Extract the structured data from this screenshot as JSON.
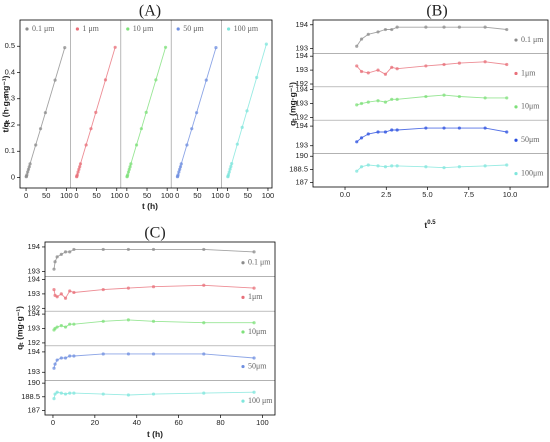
{
  "chart_data": [
    {
      "type": "line",
      "layout": "side-by-side",
      "title": "(A)",
      "x_label": "t (h)",
      "y_label": "t/qₜ (h·g·mg⁻¹)",
      "x": [
        0.5,
        1,
        2,
        4,
        6,
        8,
        10,
        24,
        36,
        48,
        72,
        96
      ],
      "xlim": [
        -15,
        110
      ],
      "xticks": [
        0,
        50,
        100
      ],
      "ylim": [
        -0.04,
        0.6
      ],
      "yticks": [
        0,
        0.1,
        0.2,
        0.3,
        0.4,
        0.5
      ],
      "series": [
        {
          "name": "0.1 μm",
          "color": "#8c8c8c",
          "values": [
            0.003,
            0.005,
            0.01,
            0.021,
            0.031,
            0.041,
            0.052,
            0.124,
            0.186,
            0.247,
            0.371,
            0.495
          ]
        },
        {
          "name": "1 μm",
          "color": "#e8707a",
          "values": [
            0.003,
            0.005,
            0.01,
            0.021,
            0.031,
            0.041,
            0.052,
            0.124,
            0.186,
            0.248,
            0.372,
            0.496
          ]
        },
        {
          "name": "10 μm",
          "color": "#7ee07a",
          "values": [
            0.003,
            0.005,
            0.01,
            0.021,
            0.031,
            0.041,
            0.052,
            0.124,
            0.186,
            0.248,
            0.372,
            0.496
          ]
        },
        {
          "name": "50 μm",
          "color": "#6f8fe0",
          "values": [
            0.003,
            0.005,
            0.01,
            0.021,
            0.031,
            0.041,
            0.052,
            0.124,
            0.186,
            0.247,
            0.371,
            0.495
          ]
        },
        {
          "name": "100 μm",
          "color": "#7fe6dc",
          "values": [
            0.003,
            0.005,
            0.011,
            0.021,
            0.032,
            0.042,
            0.053,
            0.127,
            0.191,
            0.254,
            0.381,
            0.508
          ]
        }
      ]
    },
    {
      "type": "line",
      "layout": "stacked",
      "title": "(B)",
      "x_label": "t",
      "x_label_sup": "0.5",
      "y_label": "qₜ (mg·g⁻¹)",
      "x": [
        0.71,
        1,
        1.41,
        2,
        2.45,
        2.83,
        3.16,
        4.9,
        6,
        6.93,
        8.49,
        9.8
      ],
      "xlim": [
        -1.94,
        12.3
      ],
      "xticks": [
        {
          "value": 0,
          "label": "0.0"
        },
        {
          "value": 2.5,
          "label": "2.5"
        },
        {
          "value": 5,
          "label": "5.0"
        },
        {
          "value": 7.5,
          "label": "7.5"
        },
        {
          "value": 10,
          "label": "10.0"
        }
      ],
      "series": [
        {
          "name": "0.1 μm",
          "color": "#8c8c8c",
          "ylim": [
            192.8,
            194.2
          ],
          "yticks": [
            193,
            194
          ],
          "values": [
            193.1,
            193.4,
            193.6,
            193.7,
            193.8,
            193.8,
            193.9,
            193.9,
            193.9,
            193.9,
            193.9,
            193.8
          ]
        },
        {
          "name": "1μm",
          "color": "#e8707a",
          "ylim": [
            191.8,
            194.2
          ],
          "yticks": [
            192,
            193,
            194
          ],
          "values": [
            193.3,
            192.9,
            192.8,
            193.0,
            192.7,
            193.2,
            193.1,
            193.3,
            193.4,
            193.5,
            193.6,
            193.4
          ]
        },
        {
          "name": "10μm",
          "color": "#7ee07a",
          "ylim": [
            191.8,
            194.2
          ],
          "yticks": [
            192,
            193,
            194
          ],
          "values": [
            192.9,
            193.0,
            193.1,
            193.2,
            193.1,
            193.3,
            193.3,
            193.5,
            193.6,
            193.5,
            193.4,
            193.4
          ]
        },
        {
          "name": "50μm",
          "color": "#2a4fe0",
          "ylim": [
            192.6,
            194.3
          ],
          "yticks": [
            193,
            194
          ],
          "values": [
            193.2,
            193.4,
            193.6,
            193.7,
            193.7,
            193.8,
            193.8,
            193.9,
            193.9,
            193.9,
            193.9,
            193.7
          ]
        },
        {
          "name": "100μm",
          "color": "#7fe6dc",
          "ylim": [
            186.5,
            190.3
          ],
          "yticks": [
            187,
            188.5,
            190
          ],
          "values": [
            188.3,
            188.8,
            189.0,
            188.9,
            188.8,
            188.9,
            188.9,
            188.8,
            188.7,
            188.8,
            188.9,
            189.0
          ]
        }
      ]
    },
    {
      "type": "line",
      "layout": "stacked",
      "title": "(C)",
      "x_label": "t (h)",
      "y_label": "qₜ (mg·g⁻¹)",
      "x": [
        0.5,
        1,
        2,
        4,
        6,
        8,
        10,
        24,
        36,
        48,
        72,
        96
      ],
      "xlim": [
        -3.8,
        106
      ],
      "xticks": [
        0,
        20,
        40,
        60,
        80,
        100
      ],
      "series": [
        {
          "name": "0.1 μm",
          "color": "#8c8c8c",
          "ylim": [
            192.8,
            194.2
          ],
          "yticks": [
            193,
            194
          ],
          "values": [
            193.1,
            193.4,
            193.6,
            193.7,
            193.8,
            193.8,
            193.9,
            193.9,
            193.9,
            193.9,
            193.9,
            193.8
          ]
        },
        {
          "name": "1μm",
          "color": "#e8707a",
          "ylim": [
            191.8,
            194.2
          ],
          "yticks": [
            192,
            193,
            194
          ],
          "values": [
            193.3,
            192.9,
            192.8,
            193.0,
            192.7,
            193.2,
            193.1,
            193.3,
            193.4,
            193.5,
            193.6,
            193.4
          ]
        },
        {
          "name": "10μm",
          "color": "#7ee07a",
          "ylim": [
            191.8,
            194.2
          ],
          "yticks": [
            192,
            193,
            194
          ],
          "values": [
            192.9,
            193.0,
            193.1,
            193.2,
            193.1,
            193.3,
            193.3,
            193.5,
            193.6,
            193.5,
            193.4,
            193.4
          ]
        },
        {
          "name": "50μm",
          "color": "#6f8fe0",
          "ylim": [
            192.6,
            194.3
          ],
          "yticks": [
            193,
            194
          ],
          "values": [
            193.2,
            193.4,
            193.6,
            193.7,
            193.7,
            193.8,
            193.8,
            193.9,
            193.9,
            193.9,
            193.9,
            193.7
          ]
        },
        {
          "name": "100 μm",
          "color": "#7fe6dc",
          "ylim": [
            186.5,
            190.3
          ],
          "yticks": [
            187,
            188.5,
            190
          ],
          "values": [
            188.3,
            188.8,
            189.0,
            188.9,
            188.8,
            188.9,
            188.9,
            188.8,
            188.7,
            188.8,
            188.9,
            189.0
          ]
        }
      ]
    }
  ]
}
